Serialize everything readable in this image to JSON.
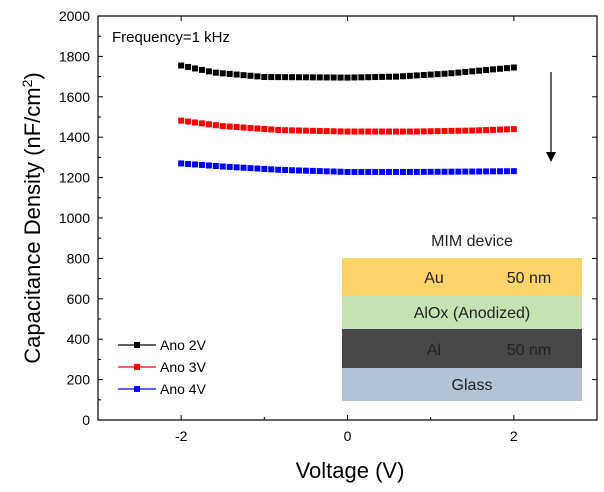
{
  "chart_data": {
    "type": "scatter",
    "xlabel": "Voltage (V)",
    "ylabel_main": "Capacitance Density (nF/cm",
    "ylabel_sup": "2",
    "ylabel_end": ")",
    "xlim": [
      -3,
      3
    ],
    "ylim": [
      0,
      2000
    ],
    "x_ticks": [
      -2,
      0,
      2
    ],
    "x_tick_labels": [
      "-2",
      "0",
      "2"
    ],
    "y_ticks": [
      0,
      200,
      400,
      600,
      800,
      1000,
      1200,
      1400,
      1600,
      1800,
      2000
    ],
    "y_tick_labels": [
      "0",
      "200",
      "400",
      "600",
      "800",
      "1000",
      "1200",
      "1400",
      "1600",
      "1800",
      "2000"
    ],
    "annotation": "Frequency=1 kHz",
    "legend_position": "bottom-left",
    "series": [
      {
        "name": "Ano 2V",
        "color": "#000000",
        "x_range": [
          -2,
          2
        ],
        "y_points": [
          [
            -2,
            1755
          ],
          [
            -1.6,
            1720
          ],
          [
            -1.0,
            1698
          ],
          [
            0,
            1695
          ],
          [
            0.6,
            1700
          ],
          [
            1.2,
            1715
          ],
          [
            2,
            1745
          ]
        ]
      },
      {
        "name": "Ano 3V",
        "color": "#ff0000",
        "x_range": [
          -2,
          2
        ],
        "y_points": [
          [
            -2,
            1482
          ],
          [
            -1.5,
            1455
          ],
          [
            -0.8,
            1435
          ],
          [
            0,
            1428
          ],
          [
            0.8,
            1428
          ],
          [
            1.5,
            1433
          ],
          [
            2,
            1440
          ]
        ]
      },
      {
        "name": "Ano 4V",
        "color": "#0000ff",
        "x_range": [
          -2,
          2
        ],
        "y_points": [
          [
            -2,
            1270
          ],
          [
            -1.5,
            1255
          ],
          [
            -0.8,
            1238
          ],
          [
            0,
            1228
          ],
          [
            0.8,
            1228
          ],
          [
            1.5,
            1230
          ],
          [
            2,
            1232
          ]
        ]
      }
    ],
    "inset": {
      "title": "MIM device",
      "layers": [
        {
          "material": "Au",
          "thickness": "50 nm",
          "color": "#fed46a"
        },
        {
          "material": "AlOx (Anodized)",
          "thickness": "",
          "color": "#c6e2b4"
        },
        {
          "material": "Al",
          "thickness": "50 nm",
          "color": "#474747"
        },
        {
          "material": "Glass",
          "thickness": "",
          "color": "#b4c3d4"
        }
      ]
    }
  }
}
